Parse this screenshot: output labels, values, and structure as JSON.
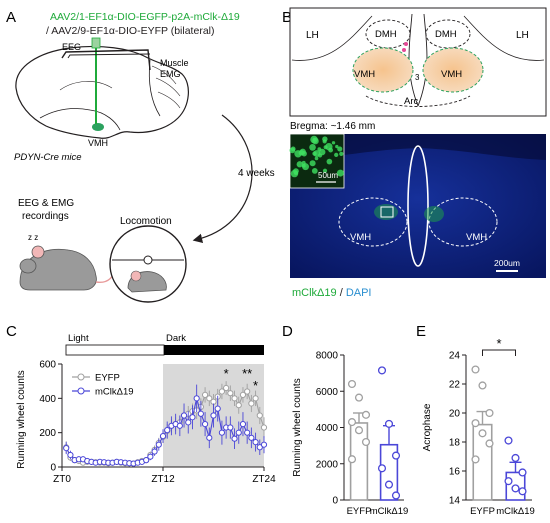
{
  "panel_a": {
    "letter": "A",
    "virus_line1": "AAV2/1-EF1α-DIO-EGFP-p2A-mClk-Δ19",
    "virus_line2": "/ AAV2/9-EF1α-DIO-EYFP (bilateral)",
    "eeg_label": "EEG",
    "muscle_label": "Muscle",
    "emg_label": "EMG",
    "vmh_label": "VMH",
    "mouse_line": "PDYN-Cre mice",
    "weeks_label": "4 weeks",
    "recording_line1": "EEG & EMG",
    "recording_line2": "recordings",
    "plus": "+",
    "locomotion_label": "Locomotion",
    "sleep_zz": "z z",
    "colors": {
      "virus": "#1faa3a",
      "vmh_green": "#2ca25f"
    }
  },
  "panel_b": {
    "letter": "B",
    "atlas": {
      "dmh_left": "DMH",
      "dmh_right": "DMH",
      "lh_left": "LH",
      "lh_right": "LH",
      "vmh_left": "VMH",
      "vmh_right": "VMH",
      "third_ventricle": "3",
      "arc": "Arc"
    },
    "bregma": "Bregma: ~1.46 mm",
    "inset_scale": "50um",
    "vmh_left": "VMH",
    "vmh_right": "VMH",
    "scale_bar": "200um",
    "stain_green": "mClkΔ19",
    "stain_sep": " / ",
    "stain_blue": "DAPI",
    "colors": {
      "green": "#1faa3a",
      "blue": "#2a8fd0",
      "tissue": "#0b1f7a"
    }
  },
  "panel_c": {
    "letter": "C",
    "light_label": "Light",
    "dark_label": "Dark",
    "sig_stars": [
      "*",
      "**",
      "*"
    ],
    "chart_data": {
      "type": "line",
      "ylabel": "Running wheel counts",
      "ylim": [
        0,
        600
      ],
      "yticks": [
        0,
        200,
        400,
        600
      ],
      "xtick_labels": [
        "ZT0",
        "ZT12",
        "ZT24"
      ],
      "x": [
        0.5,
        1,
        1.5,
        2,
        2.5,
        3,
        3.5,
        4,
        4.5,
        5,
        5.5,
        6,
        6.5,
        7,
        7.5,
        8,
        8.5,
        9,
        9.5,
        10,
        10.5,
        11,
        11.5,
        12,
        12.5,
        13,
        13.5,
        14,
        14.5,
        15,
        15.5,
        16,
        16.5,
        17,
        17.5,
        18,
        18.5,
        19,
        19.5,
        20,
        20.5,
        21,
        21.5,
        22,
        22.5,
        23,
        23.5,
        24
      ],
      "shaded_range": [
        12,
        24
      ],
      "series": [
        {
          "name": "EYFP",
          "color": "#a0a0a0",
          "values": [
            115,
            55,
            40,
            35,
            25,
            30,
            30,
            28,
            25,
            25,
            22,
            25,
            30,
            25,
            22,
            22,
            20,
            28,
            35,
            40,
            70,
            100,
            140,
            175,
            210,
            240,
            250,
            260,
            300,
            310,
            325,
            330,
            350,
            420,
            400,
            380,
            410,
            440,
            460,
            430,
            400,
            360,
            420,
            440,
            370,
            400,
            300,
            230
          ],
          "err": [
            35,
            20,
            15,
            12,
            10,
            10,
            10,
            10,
            8,
            8,
            8,
            8,
            10,
            8,
            8,
            8,
            8,
            10,
            12,
            14,
            20,
            25,
            30,
            35,
            40,
            40,
            40,
            40,
            45,
            45,
            45,
            50,
            50,
            45,
            45,
            45,
            45,
            45,
            40,
            45,
            45,
            50,
            45,
            45,
            50,
            45,
            50,
            60
          ]
        },
        {
          "name": "mClkΔ19",
          "color": "#4b47d8",
          "values": [
            110,
            70,
            40,
            45,
            45,
            35,
            30,
            25,
            30,
            28,
            25,
            25,
            30,
            28,
            25,
            22,
            20,
            25,
            30,
            40,
            60,
            90,
            130,
            180,
            215,
            240,
            250,
            240,
            300,
            260,
            290,
            400,
            310,
            250,
            170,
            300,
            340,
            200,
            230,
            230,
            165,
            200,
            250,
            200,
            170,
            145,
            115,
            130
          ],
          "err": [
            35,
            25,
            15,
            15,
            15,
            12,
            12,
            10,
            10,
            10,
            10,
            10,
            10,
            10,
            10,
            8,
            8,
            10,
            12,
            14,
            20,
            25,
            35,
            40,
            50,
            55,
            60,
            60,
            70,
            65,
            70,
            80,
            75,
            70,
            60,
            70,
            75,
            70,
            65,
            65,
            60,
            65,
            70,
            65,
            60,
            55,
            45,
            50
          ]
        }
      ]
    }
  },
  "panel_d": {
    "letter": "D",
    "chart_data": {
      "type": "bar",
      "ylabel": "Running wheel counts",
      "ylim": [
        0,
        8000
      ],
      "yticks": [
        0,
        2000,
        4000,
        6000,
        8000
      ],
      "categories": [
        "EYFP",
        "mClkΔ19"
      ],
      "values": [
        4250,
        3050
      ],
      "errors": [
        550,
        1050
      ],
      "colors": [
        "#a0a0a0",
        "#4b47d8"
      ],
      "points": [
        [
          6400,
          5650,
          4700,
          4300,
          3850,
          3200,
          2250
        ],
        [
          7150,
          4200,
          2450,
          1750,
          850,
          250
        ]
      ]
    }
  },
  "panel_e": {
    "letter": "E",
    "sig_star": "*",
    "chart_data": {
      "type": "bar",
      "ylabel": "Acrophase",
      "ylim": [
        14,
        24
      ],
      "yticks": [
        14,
        16,
        18,
        20,
        22,
        24
      ],
      "categories": [
        "EYFP",
        "mClkΔ19"
      ],
      "values": [
        19.2,
        15.9
      ],
      "errors": [
        0.9,
        0.7
      ],
      "colors": [
        "#a0a0a0",
        "#4b47d8"
      ],
      "points": [
        [
          23.0,
          21.9,
          20.0,
          19.3,
          18.6,
          17.9,
          16.8
        ],
        [
          18.1,
          16.9,
          15.9,
          15.3,
          14.8,
          14.6
        ]
      ]
    }
  }
}
